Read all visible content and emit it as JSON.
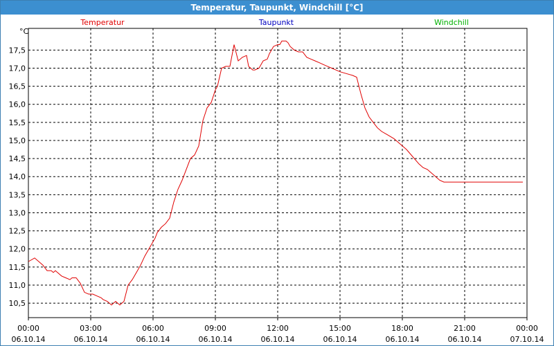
{
  "window": {
    "title": "Temperatur, Taupunkt, Windchill [°C]"
  },
  "colors": {
    "titlebar": "#3c8fd0",
    "temperature": "#e00000",
    "dewpoint": "#0000c0",
    "windchill": "#00b000",
    "grid": "#000000"
  },
  "chart_data": {
    "type": "line",
    "title": "Temperatur, Taupunkt, Windchill [°C]",
    "ylabel": "°C",
    "ylim": [
      10.1,
      18.1
    ],
    "yticks": [
      "10,5",
      "11,0",
      "11,5",
      "12,0",
      "12,5",
      "13,0",
      "13,5",
      "14,0",
      "14,5",
      "15,0",
      "15,5",
      "16,0",
      "16,5",
      "17,0",
      "17,5"
    ],
    "ytick_values": [
      10.5,
      11.0,
      11.5,
      12.0,
      12.5,
      13.0,
      13.5,
      14.0,
      14.5,
      15.0,
      15.5,
      16.0,
      16.5,
      17.0,
      17.5
    ],
    "xlim": [
      0,
      24
    ],
    "xtick_values": [
      0,
      3,
      6,
      9,
      12,
      15,
      18,
      21,
      24
    ],
    "xtick_times": [
      "00:00",
      "03:00",
      "06:00",
      "09:00",
      "12:00",
      "15:00",
      "18:00",
      "21:00",
      "00:00"
    ],
    "xtick_dates": [
      "06.10.14",
      "06.10.14",
      "06.10.14",
      "06.10.14",
      "06.10.14",
      "06.10.14",
      "06.10.14",
      "06.10.14",
      "07.10.14"
    ],
    "grid": true,
    "legend": [
      "Temperatur",
      "Taupunkt",
      "Windchill"
    ],
    "series": [
      {
        "name": "Temperatur",
        "x": [
          0,
          0.3,
          0.5,
          0.7,
          0.9,
          1.1,
          1.2,
          1.3,
          1.4,
          1.6,
          1.8,
          2.0,
          2.1,
          2.3,
          2.5,
          2.7,
          2.9,
          3.0,
          3.1,
          3.3,
          3.5,
          3.6,
          3.8,
          4.0,
          4.2,
          4.4,
          4.6,
          4.8,
          5.0,
          5.2,
          5.4,
          5.6,
          5.8,
          6.0,
          6.1,
          6.2,
          6.4,
          6.6,
          6.8,
          7.0,
          7.2,
          7.4,
          7.6,
          7.8,
          8.0,
          8.2,
          8.4,
          8.6,
          8.8,
          9.0,
          9.1,
          9.3,
          9.5,
          9.7,
          9.9,
          10.1,
          10.3,
          10.5,
          10.6,
          10.8,
          10.9,
          11.1,
          11.2,
          11.3,
          11.5,
          11.6,
          11.8,
          12.0,
          12.1,
          12.2,
          12.4,
          12.5,
          12.6,
          12.8,
          13.0,
          13.2,
          13.4,
          13.6,
          13.8,
          14.0,
          14.2,
          14.4,
          14.6,
          14.8,
          15.0,
          15.3,
          15.6,
          15.8,
          16.0,
          16.2,
          16.4,
          16.6,
          16.8,
          17.0,
          17.3,
          17.6,
          17.9,
          18.2,
          18.5,
          18.8,
          19.0,
          19.2,
          19.4,
          19.6,
          19.8,
          20.0,
          20.2,
          20.4,
          20.6,
          20.8,
          21.0,
          21.3,
          21.6,
          21.8,
          22.0,
          22.3,
          22.6,
          22.8,
          23.0,
          23.2,
          23.5,
          23.8
        ],
        "values": [
          11.65,
          11.75,
          11.65,
          11.55,
          11.4,
          11.4,
          11.35,
          11.4,
          11.35,
          11.25,
          11.2,
          11.15,
          11.2,
          11.2,
          11.05,
          10.8,
          10.75,
          10.75,
          10.75,
          10.7,
          10.65,
          10.6,
          10.55,
          10.45,
          10.55,
          10.45,
          10.55,
          11.0,
          11.15,
          11.35,
          11.55,
          11.8,
          12.0,
          12.2,
          12.3,
          12.45,
          12.6,
          12.7,
          12.85,
          13.3,
          13.65,
          13.9,
          14.2,
          14.5,
          14.6,
          14.85,
          15.55,
          15.9,
          16.05,
          16.4,
          16.5,
          17.0,
          17.05,
          17.05,
          17.65,
          17.2,
          17.3,
          17.35,
          17.05,
          16.95,
          16.95,
          17.0,
          17.1,
          17.2,
          17.25,
          17.4,
          17.6,
          17.65,
          17.65,
          17.75,
          17.75,
          17.7,
          17.6,
          17.5,
          17.45,
          17.45,
          17.3,
          17.25,
          17.2,
          17.15,
          17.1,
          17.05,
          17.0,
          16.95,
          16.9,
          16.85,
          16.8,
          16.75,
          16.3,
          15.9,
          15.65,
          15.5,
          15.35,
          15.25,
          15.15,
          15.05,
          14.9,
          14.75,
          14.55,
          14.35,
          14.25,
          14.2,
          14.1,
          14.0,
          13.9,
          13.85,
          13.85,
          13.85,
          13.85,
          13.85,
          13.85,
          13.85,
          13.85,
          13.85,
          13.85,
          13.85,
          13.85,
          13.85,
          13.85,
          13.85,
          13.85,
          13.85
        ]
      }
    ]
  }
}
